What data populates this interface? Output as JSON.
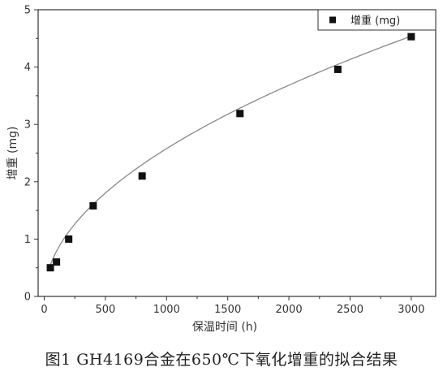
{
  "caption": "图1 GH4169合金在650℃下氧化增重的拟合结果",
  "chart_data": {
    "type": "scatter",
    "xlabel": "保温时间 (h)",
    "ylabel": "增重 (mg)",
    "xlim": [
      -50,
      3200
    ],
    "ylim": [
      0,
      5
    ],
    "x_ticks": [
      0,
      500,
      1000,
      1500,
      2000,
      2500,
      3000
    ],
    "y_ticks": [
      0,
      1,
      2,
      3,
      4,
      5
    ],
    "grid": false,
    "legend_position": "top-right",
    "series": [
      {
        "name": "增重 (mg)",
        "marker": "square",
        "color": "#111111",
        "x": [
          50,
          100,
          200,
          400,
          800,
          1600,
          2400,
          3000
        ],
        "y": [
          0.5,
          0.6,
          1.0,
          1.58,
          2.1,
          3.19,
          3.96,
          4.53
        ]
      }
    ],
    "fit_curve": {
      "model": "power",
      "color": "#888888",
      "x_range": [
        50,
        3000
      ],
      "coefficient": 0.0735,
      "exponent": 0.515
    }
  }
}
